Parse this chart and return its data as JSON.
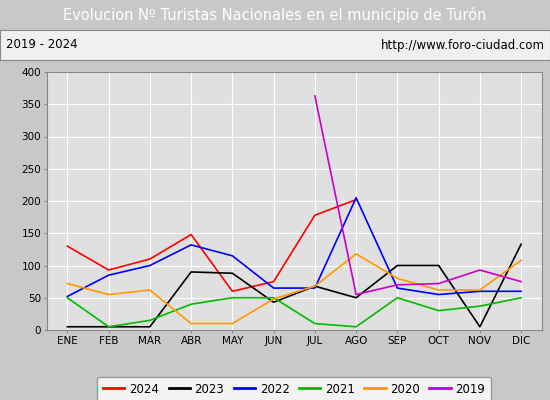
{
  "title": "Evolucion Nº Turistas Nacionales en el municipio de Turón",
  "subtitle_left": "2019 - 2024",
  "subtitle_right": "http://www.foro-ciudad.com",
  "months": [
    "ENE",
    "FEB",
    "MAR",
    "ABR",
    "MAY",
    "JUN",
    "JUL",
    "AGO",
    "SEP",
    "OCT",
    "NOV",
    "DIC"
  ],
  "series": {
    "2024": [
      130,
      93,
      110,
      148,
      60,
      75,
      178,
      202,
      null,
      null,
      null,
      null
    ],
    "2023": [
      5,
      5,
      5,
      90,
      88,
      43,
      68,
      50,
      100,
      100,
      5,
      133
    ],
    "2022": [
      52,
      85,
      100,
      132,
      115,
      65,
      65,
      205,
      65,
      55,
      60,
      60
    ],
    "2021": [
      50,
      5,
      15,
      40,
      50,
      50,
      10,
      5,
      50,
      30,
      37,
      50
    ],
    "2020": [
      72,
      55,
      62,
      10,
      10,
      48,
      68,
      118,
      80,
      62,
      62,
      108
    ],
    "2019": [
      null,
      null,
      null,
      null,
      null,
      null,
      363,
      55,
      70,
      72,
      93,
      75
    ]
  },
  "colors": {
    "2024": "#ff0000",
    "2023": "#000000",
    "2022": "#0000ff",
    "2021": "#00bb00",
    "2020": "#ff9900",
    "2019": "#cc00cc"
  },
  "ylim": [
    0,
    400
  ],
  "yticks": [
    0,
    50,
    100,
    150,
    200,
    250,
    300,
    350,
    400
  ],
  "title_bgcolor": "#4472c4",
  "title_color": "#ffffff",
  "plot_bgcolor": "#e0e0e0",
  "grid_color": "#ffffff",
  "outer_bgcolor": "#c8c8c8",
  "subtitle_bgcolor": "#f0f0f0",
  "title_fontsize": 10.5,
  "legend_fontsize": 8.5,
  "axis_fontsize": 7.5
}
